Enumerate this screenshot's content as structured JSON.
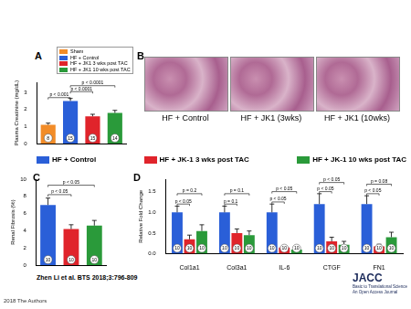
{
  "chart_data": [
    {
      "panel": "A",
      "type": "bar",
      "y_label": "Plasma Creatinine (mg/dL)",
      "categories": [
        "Sham",
        "HF + Control",
        "HF + JK1 3 wks post TAC",
        "HF + JK1 10 wks post TAC"
      ],
      "values": [
        1.1,
        2.5,
        1.6,
        1.8
      ],
      "errors": [
        0.1,
        0.15,
        0.12,
        0.15
      ],
      "n": [
        8,
        15,
        15,
        14
      ],
      "colors": [
        "#f28c28",
        "#2a5fd8",
        "#e0242b",
        "#2a9a3a"
      ],
      "ylim": [
        0,
        3.6
      ],
      "yticks": [
        0,
        1,
        2,
        3
      ],
      "grid": false,
      "tick_labels": "y",
      "legend": "top",
      "brackets": [
        {
          "from": "Sham",
          "to": "HF + Control",
          "y": 2.7,
          "label": "p < 0.001"
        },
        {
          "from": "HF + Control",
          "to": "HF + JK1 3 wks post TAC",
          "y": 3.05,
          "label": "p < 0.0001"
        },
        {
          "from": "HF + Control",
          "to": "HF + JK1 10 wks post TAC",
          "y": 3.4,
          "label": "p < 0.0001"
        }
      ]
    },
    {
      "panel": "C",
      "type": "bar",
      "y_label": "Renal Fibrosis (%)",
      "categories": [
        "HF + Control",
        "HF + JK-1 3 wks post TAC",
        "HF + JK-1 10 wks post TAC"
      ],
      "values": [
        7.0,
        4.2,
        4.6
      ],
      "errors": [
        0.8,
        0.5,
        0.6
      ],
      "n": [
        10,
        10,
        10
      ],
      "colors": [
        "#2a5fd8",
        "#e0242b",
        "#2a9a3a"
      ],
      "ylim": [
        0,
        10
      ],
      "yticks": [
        0,
        2,
        4,
        6,
        8,
        10
      ],
      "grid": false,
      "tick_labels": "y",
      "brackets": [
        {
          "from": "HF + Control",
          "to": "HF + JK-1 3 wks post TAC",
          "y": 8.2,
          "label": "p < 0.05"
        },
        {
          "from": "HF + Control",
          "to": "HF + JK-1 10 wks post TAC",
          "y": 9.3,
          "label": "p < 0.05"
        }
      ]
    },
    {
      "panel": "D",
      "type": "bar",
      "y_label": "Relative Fold Change",
      "categories": [
        "Col1a1",
        "Col3a1",
        "IL-6",
        "CTGF",
        "FN1"
      ],
      "series": [
        {
          "name": "HF + Control",
          "color": "#2a5fd8",
          "values": [
            1.0,
            1.0,
            1.0,
            1.2,
            1.2
          ],
          "errors": [
            0.15,
            0.15,
            0.2,
            0.25,
            0.2
          ],
          "n": [
            10,
            10,
            10,
            10,
            10
          ]
        },
        {
          "name": "HF + JK-1 3 wks post TAC",
          "color": "#e0242b",
          "values": [
            0.35,
            0.5,
            0.15,
            0.3,
            0.18
          ],
          "errors": [
            0.1,
            0.1,
            0.05,
            0.1,
            0.05
          ],
          "n": [
            10,
            10,
            10,
            10,
            10
          ]
        },
        {
          "name": "HF + JK-1 10 wks post TAC",
          "color": "#2a9a3a",
          "values": [
            0.55,
            0.45,
            0.1,
            0.22,
            0.4
          ],
          "errors": [
            0.15,
            0.1,
            0.05,
            0.08,
            0.12
          ],
          "n": [
            10,
            10,
            10,
            10,
            10
          ]
        }
      ],
      "ylim": [
        0,
        1.8
      ],
      "yticks": [
        {
          "value": 0,
          "label": "0.0"
        },
        {
          "value": 0.5,
          "label": "0.5"
        },
        {
          "value": 1,
          "label": "1.0"
        },
        {
          "value": 1.5,
          "label": "1.5"
        }
      ],
      "grid": false,
      "legend": "top",
      "brackets": [
        {
          "category": "Col1a1",
          "from": "HF + Control",
          "to": "HF + JK-1 3 wks post TAC",
          "y": 1.2,
          "label": "p < 0.05"
        },
        {
          "category": "Col1a1",
          "from": "HF + Control",
          "to": "HF + JK-1 10 wks post TAC",
          "y": 1.45,
          "label": "p = 0.2"
        },
        {
          "category": "Col3a1",
          "from": "HF + Control",
          "to": "HF + JK-1 3 wks post TAC",
          "y": 1.2,
          "label": "p = 0.1"
        },
        {
          "category": "Col3a1",
          "from": "HF + Control",
          "to": "HF + JK-1 10 wks post TAC",
          "y": 1.45,
          "label": "p = 0.1"
        },
        {
          "category": "IL-6",
          "from": "HF + Control",
          "to": "HF + JK-1 3 wks post TAC",
          "y": 1.25,
          "label": "p < 0.05"
        },
        {
          "category": "IL-6",
          "from": "HF + Control",
          "to": "HF + JK-1 10 wks post TAC",
          "y": 1.5,
          "label": "p < 0.05"
        },
        {
          "category": "CTGF",
          "from": "HF + Control",
          "to": "HF + JK-1 3 wks post TAC",
          "y": 1.5,
          "label": "p < 0.05"
        },
        {
          "category": "CTGF",
          "from": "HF + Control",
          "to": "HF + JK-1 10 wks post TAC",
          "y": 1.72,
          "label": "p < 0.05"
        },
        {
          "category": "FN1",
          "from": "HF + Control",
          "to": "HF + JK-1 3 wks post TAC",
          "y": 1.45,
          "label": "p < 0.05"
        },
        {
          "category": "FN1",
          "from": "HF + Control",
          "to": "HF + JK-1 10 wks post TAC",
          "y": 1.68,
          "label": "p = 0.08"
        }
      ]
    }
  ],
  "images": {
    "panel": "B",
    "labels": [
      "HF + Control",
      "HF + JK1 (3wks)",
      "HF + JK1 (10wks)"
    ]
  },
  "citation": "Zhen Li et al. BTS 2018;3:796-809",
  "copyright": "2018 The Authors",
  "logo": {
    "title": "JACC",
    "subtitle": "Basic to Translational Science",
    "tagline": "An Open Access Journal"
  }
}
